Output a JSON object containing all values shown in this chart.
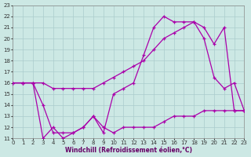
{
  "bg_color": "#cce8e4",
  "grid_color": "#aacccc",
  "line_color": "#aa00aa",
  "xlabel": "Windchill (Refroidissement éolien,°C)",
  "xlim": [
    0,
    23
  ],
  "ylim": [
    11,
    23
  ],
  "xticks": [
    0,
    1,
    2,
    3,
    4,
    5,
    6,
    7,
    8,
    9,
    10,
    11,
    12,
    13,
    14,
    15,
    16,
    17,
    18,
    19,
    20,
    21,
    22,
    23
  ],
  "yticks": [
    11,
    12,
    13,
    14,
    15,
    16,
    17,
    18,
    19,
    20,
    21,
    22,
    23
  ],
  "s1_x": [
    0,
    1,
    2,
    3,
    4,
    5,
    6,
    7,
    8,
    9,
    10,
    11,
    12,
    13,
    14,
    15,
    16,
    17,
    18,
    19,
    20,
    21,
    22,
    23
  ],
  "s1_y": [
    16,
    16,
    16,
    14,
    11.5,
    11.5,
    11.5,
    12,
    13,
    11.5,
    15,
    15.5,
    16,
    18.5,
    21,
    22,
    21.5,
    21.5,
    21.5,
    20,
    16.5,
    15.5,
    16,
    13.5
  ],
  "s2_x": [
    0,
    1,
    2,
    3,
    4,
    5,
    6,
    7,
    8,
    9,
    10,
    11,
    12,
    13,
    14,
    15,
    16,
    17,
    18,
    19,
    20,
    21,
    22,
    23
  ],
  "s2_y": [
    16,
    16,
    16,
    16,
    15.5,
    15.5,
    15.5,
    15.5,
    15.5,
    16,
    16.5,
    17,
    17.5,
    18,
    19,
    20,
    20.5,
    21,
    21.5,
    21,
    19.5,
    21,
    13.5,
    13.5
  ],
  "s3_x": [
    0,
    1,
    2,
    3,
    4,
    5,
    6,
    7,
    8,
    9,
    10,
    11,
    12,
    13,
    14,
    15,
    16,
    17,
    18,
    19,
    20,
    21,
    22,
    23
  ],
  "s3_y": [
    16,
    16,
    16,
    11,
    12,
    11,
    11.5,
    12,
    13,
    12,
    11.5,
    12,
    12,
    12,
    12,
    12.5,
    13,
    13,
    13,
    13.5,
    13.5,
    13.5,
    13.5,
    13.5
  ],
  "lw": 0.9,
  "ms": 2.5,
  "mew": 0.9,
  "tick_fontsize": 5.0,
  "xlabel_fontsize": 5.5
}
